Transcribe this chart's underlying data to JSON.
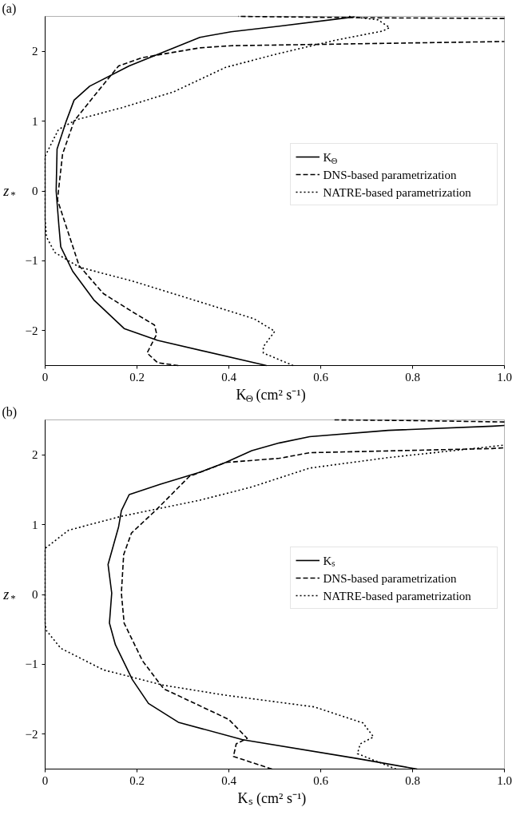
{
  "chart_data": [
    {
      "type": "line",
      "title": "(a)",
      "xlabel": "K$_{Θ}$ (cm² s⁻¹)",
      "ylabel": "z$_{*}$",
      "legend": "right",
      "grid": false,
      "xlim": [
        0,
        1
      ],
      "xticks": [
        0,
        0.2,
        0.4,
        0.6,
        0.8,
        {
          "value": 1,
          "label": "1.0"
        }
      ],
      "ylim": [
        -2.5,
        2.5
      ],
      "yticks": [
        -2,
        -1,
        0,
        1,
        2
      ],
      "series": [
        {
          "name": "K$_{Θ}$",
          "color": "#000000",
          "line_style": "solid",
          "x": [
            0.482,
            0.245,
            0.172,
            0.106,
            0.06,
            0.034,
            0.03,
            0.024,
            0.026,
            0.046,
            0.063,
            0.097,
            0.183,
            0.337,
            0.405,
            0.51,
            0.67
          ],
          "values": [
            -2.5,
            -2.14,
            -1.97,
            -1.56,
            -1.15,
            -0.8,
            -0.5,
            0,
            0.6,
            1.0,
            1.3,
            1.5,
            1.79,
            2.2,
            2.28,
            2.36,
            2.49
          ]
        },
        {
          "name": "DNS-based parametrization",
          "color": "#000000",
          "line_style": "dashed",
          "x": [
            0.29,
            0.245,
            0.222,
            0.243,
            0.238,
            0.19,
            0.127,
            0.074,
            0.027,
            0.029,
            0.038,
            0.063,
            0.109,
            0.16,
            0.212,
            0.337,
            0.405,
            1.0,
            null,
            1.0,
            0.7,
            0.42
          ],
          "values": [
            -2.5,
            -2.46,
            -2.32,
            -2.05,
            -1.92,
            -1.73,
            -1.47,
            -1.07,
            -0.13,
            0,
            0.53,
            1.0,
            1.38,
            1.79,
            1.91,
            2.05,
            2.08,
            2.14,
            null,
            2.47,
            2.48,
            2.5
          ]
        },
        {
          "name": "NATRE-based parametrization",
          "color": "#000000",
          "line_style": "dotted",
          "x": [
            0.54,
            0.475,
            0.475,
            0.5,
            0.455,
            0.323,
            0.19,
            0.074,
            0.021,
            0.003,
            0,
            0,
            0.029,
            0.068,
            0.166,
            0.28,
            0.393,
            0.51,
            0.633,
            0.735,
            0.75,
            0.725,
            0.66
          ],
          "values": [
            -2.5,
            -2.32,
            -2.23,
            -2.01,
            -1.83,
            -1.56,
            -1.29,
            -1.09,
            -0.88,
            -0.66,
            -0.4,
            0.5,
            0.88,
            1.02,
            1.19,
            1.42,
            1.77,
            1.97,
            2.16,
            2.29,
            2.34,
            2.45,
            2.5
          ]
        }
      ]
    },
    {
      "type": "line",
      "title": "(b)",
      "xlabel": "Kₛ (cm² s⁻¹)",
      "ylabel": "z$_{*}$",
      "legend": "right",
      "grid": false,
      "xlim": [
        0,
        1
      ],
      "xticks": [
        0,
        0.2,
        0.4,
        0.6,
        0.8,
        {
          "value": 1,
          "label": "1.0"
        }
      ],
      "ylim": [
        -2.5,
        2.5
      ],
      "yticks": [
        -2,
        -1,
        0,
        1,
        2
      ],
      "series": [
        {
          "name": "Kₛ",
          "color": "#000000",
          "line_style": "solid",
          "x": [
            0.81,
            0.68,
            0.43,
            0.29,
            0.225,
            0.19,
            0.153,
            0.14,
            0.145,
            0.137,
            0.16,
            0.166,
            0.183,
            0.251,
            0.337,
            0.393,
            0.45,
            0.51,
            0.576,
            0.747,
            0.974,
            1.0
          ],
          "values": [
            -2.5,
            -2.35,
            -2.08,
            -1.83,
            -1.56,
            -1.22,
            -0.72,
            -0.41,
            0.02,
            0.43,
            0.97,
            1.2,
            1.43,
            1.58,
            1.75,
            1.89,
            2.06,
            2.17,
            2.26,
            2.35,
            2.41,
            2.42
          ]
        },
        {
          "name": "DNS-based parametrization",
          "color": "#000000",
          "line_style": "dashed",
          "x": [
            0.494,
            0.41,
            0.416,
            0.44,
            0.4,
            0.258,
            0.212,
            0.172,
            0.166,
            0.171,
            0.188,
            0.24,
            0.314,
            0.393,
            0.51,
            0.576,
            0.974,
            1.0,
            null,
            1.0,
            0.8,
            0.63
          ],
          "values": [
            -2.5,
            -2.32,
            -2.14,
            -2.06,
            -1.79,
            -1.35,
            -0.95,
            -0.41,
            0.02,
            0.57,
            0.88,
            1.2,
            1.69,
            1.89,
            1.95,
            2.03,
            2.09,
            2.1,
            null,
            2.47,
            2.49,
            2.5
          ]
        },
        {
          "name": "NATRE-based parametrization",
          "color": "#000000",
          "line_style": "dotted",
          "x": [
            0.764,
            0.68,
            0.686,
            0.715,
            0.692,
            0.586,
            0.39,
            0.258,
            0.127,
            0.034,
            0.002,
            0,
            0,
            0.0,
            0.051,
            0.166,
            0.337,
            0.45,
            0.576,
            0.747,
            0.974,
            1.0
          ],
          "values": [
            -2.5,
            -2.28,
            -2.14,
            -2.04,
            -1.84,
            -1.61,
            -1.44,
            -1.3,
            -1.08,
            -0.77,
            -0.51,
            -0.4,
            0.43,
            0.66,
            0.92,
            1.12,
            1.35,
            1.54,
            1.81,
            1.96,
            2.12,
            2.14
          ]
        }
      ]
    }
  ]
}
